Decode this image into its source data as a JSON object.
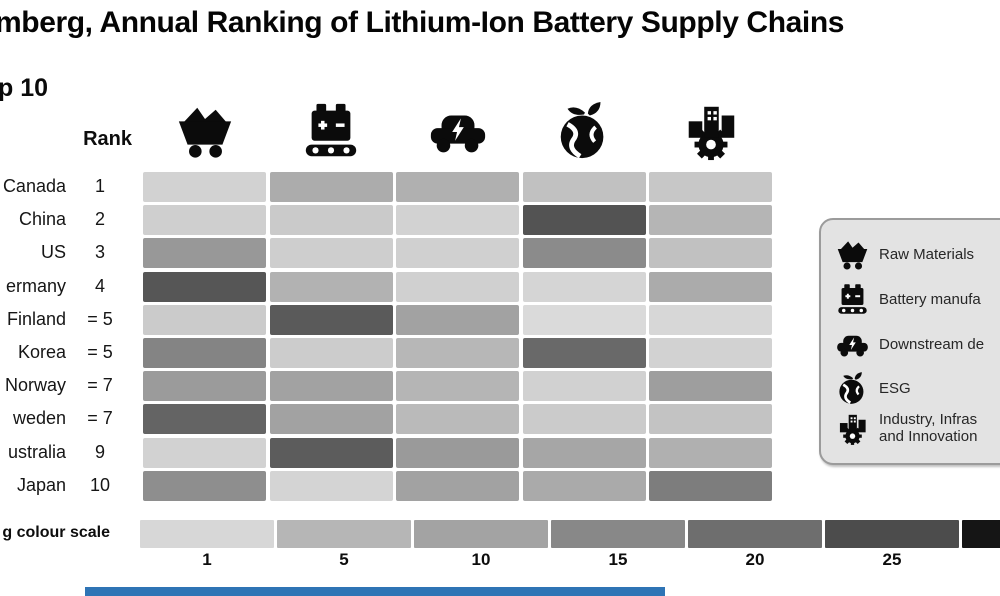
{
  "chart_data": {
    "type": "heatmap",
    "title": "mberg, Annual Ranking of Lithium-Ion Battery Supply Chains",
    "group_label": "p 10",
    "rank_header": "Rank",
    "columns": [
      {
        "id": "raw-materials",
        "icon": "mine-cart-icon"
      },
      {
        "id": "battery-manufacturing",
        "icon": "battery-conveyor-icon"
      },
      {
        "id": "downstream-demand",
        "icon": "ev-car-icon"
      },
      {
        "id": "esg",
        "icon": "earth-leaf-icon"
      },
      {
        "id": "industry-infrastructure-innovation",
        "icon": "industry-gear-icon"
      }
    ],
    "rows": [
      {
        "country": "Canada",
        "rank": "1",
        "cells": [
          "#d2d2d2",
          "#acacac",
          "#b0b0b0",
          "#c1c1c1",
          "#c7c7c7"
        ]
      },
      {
        "country": "China",
        "rank": "2",
        "cells": [
          "#cfcfcf",
          "#cacaca",
          "#d2d2d2",
          "#535353",
          "#b5b5b5"
        ]
      },
      {
        "country": "US",
        "rank": "3",
        "cells": [
          "#989898",
          "#cecece",
          "#d0d0d0",
          "#8b8b8b",
          "#c1c1c1"
        ]
      },
      {
        "country": "ermany",
        "rank": "4",
        "cells": [
          "#565656",
          "#b2b2b2",
          "#d0d0d0",
          "#d5d5d5",
          "#ababab"
        ]
      },
      {
        "country": "Finland",
        "rank": "= 5",
        "cells": [
          "#cbcbcb",
          "#5a5a5a",
          "#a2a2a2",
          "#dadada",
          "#d7d7d7"
        ]
      },
      {
        "country": "Korea",
        "rank": "= 5",
        "cells": [
          "#848484",
          "#cccccc",
          "#b7b7b7",
          "#696969",
          "#d2d2d2"
        ]
      },
      {
        "country": "Norway",
        "rank": "= 7",
        "cells": [
          "#9b9b9b",
          "#a2a2a2",
          "#b5b5b5",
          "#d1d1d1",
          "#9e9e9e"
        ]
      },
      {
        "country": "weden",
        "rank": "= 7",
        "cells": [
          "#646464",
          "#a2a2a2",
          "#bababa",
          "#cbcbcb",
          "#c3c3c3"
        ]
      },
      {
        "country": "ustralia",
        "rank": "9",
        "cells": [
          "#d2d2d2",
          "#5c5c5c",
          "#9a9a9a",
          "#a6a6a6",
          "#b0b0b0"
        ]
      },
      {
        "country": "Japan",
        "rank": "10",
        "cells": [
          "#8e8e8e",
          "#d4d4d4",
          "#a2a2a2",
          "#aaaaaa",
          "#7d7d7d"
        ]
      }
    ],
    "colour_scale": {
      "label": "g colour scale",
      "segments": [
        {
          "color": "#d7d7d7",
          "label": "1"
        },
        {
          "color": "#b6b6b6",
          "label": "5"
        },
        {
          "color": "#a3a3a3",
          "label": "10"
        },
        {
          "color": "#888888",
          "label": "15"
        },
        {
          "color": "#6e6e6e",
          "label": "20"
        },
        {
          "color": "#4c4c4c",
          "label": "25"
        },
        {
          "color": "#151515",
          "label": ""
        }
      ]
    }
  },
  "legend": {
    "items": [
      {
        "icon": "mine-cart-icon",
        "lines": [
          "Raw Materials"
        ]
      },
      {
        "icon": "battery-conveyor-icon",
        "lines": [
          "Battery manufa"
        ]
      },
      {
        "icon": "ev-car-icon",
        "lines": [
          "Downstream de"
        ]
      },
      {
        "icon": "earth-leaf-icon",
        "lines": [
          "ESG"
        ]
      },
      {
        "icon": "industry-gear-icon",
        "lines": [
          "Industry, Infras",
          "and Innovation"
        ]
      }
    ]
  },
  "accents": {
    "bottom_bar_blue": "#2e74b5",
    "legend_bg": "#e3e3e3",
    "legend_border": "#9b9b9b",
    "ink": "#0d0d0d"
  }
}
